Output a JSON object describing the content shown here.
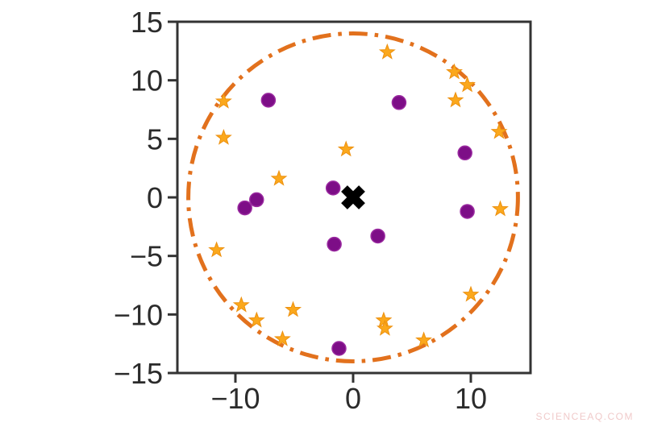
{
  "watermark": "SCIENCEAQ.COM",
  "axis": {
    "color": "#333333",
    "tick_label_color": "#2b2b2b"
  },
  "chart_data": {
    "type": "scatter",
    "title": "",
    "xlabel": "",
    "ylabel": "",
    "xlim": [
      -14.93,
      15.07
    ],
    "ylim": [
      -15,
      15
    ],
    "xticks": [
      -10,
      0,
      10
    ],
    "yticks": [
      15,
      10,
      5,
      0,
      -5,
      -10,
      -15
    ],
    "grid": false,
    "legend": "none",
    "series": [
      {
        "name": "orange-star-points",
        "marker": "star",
        "color": "#FBA81C",
        "edge_color": "#ED9110",
        "points": [
          [
            2.9,
            12.4
          ],
          [
            8.6,
            10.7
          ],
          [
            9.7,
            9.6
          ],
          [
            8.7,
            8.3
          ],
          [
            -11.0,
            8.2
          ],
          [
            12.4,
            5.6
          ],
          [
            -11.0,
            5.1
          ],
          [
            -0.6,
            4.1
          ],
          [
            -6.3,
            1.6
          ],
          [
            12.5,
            -1.0
          ],
          [
            -11.6,
            -4.5
          ],
          [
            10.0,
            -8.3
          ],
          [
            -9.5,
            -9.2
          ],
          [
            -5.1,
            -9.6
          ],
          [
            -8.2,
            -10.5
          ],
          [
            2.6,
            -10.5
          ],
          [
            2.7,
            -11.2
          ],
          [
            -6.0,
            -12.1
          ],
          [
            6.0,
            -12.2
          ]
        ]
      },
      {
        "name": "purple-cluster-points",
        "marker": "circle",
        "color": "#7D0E87",
        "edge_color": "#9A2AA0",
        "points": [
          [
            -7.2,
            8.3
          ],
          [
            3.9,
            8.1
          ],
          [
            9.5,
            3.8
          ],
          [
            -1.7,
            0.8
          ],
          [
            -8.2,
            -0.2
          ],
          [
            -9.2,
            -0.9
          ],
          [
            9.7,
            -1.2
          ],
          [
            2.1,
            -3.3
          ],
          [
            -1.6,
            -4.0
          ],
          [
            -1.2,
            -12.9
          ]
        ]
      },
      {
        "name": "center-x-marker",
        "marker": "X",
        "color": "#000000",
        "points": [
          [
            0,
            0
          ]
        ]
      }
    ],
    "boundary_circle": {
      "center": [
        0,
        0
      ],
      "radius": 14,
      "color": "#E2711D",
      "line_style": "dash-dot",
      "line_width": 5
    }
  }
}
